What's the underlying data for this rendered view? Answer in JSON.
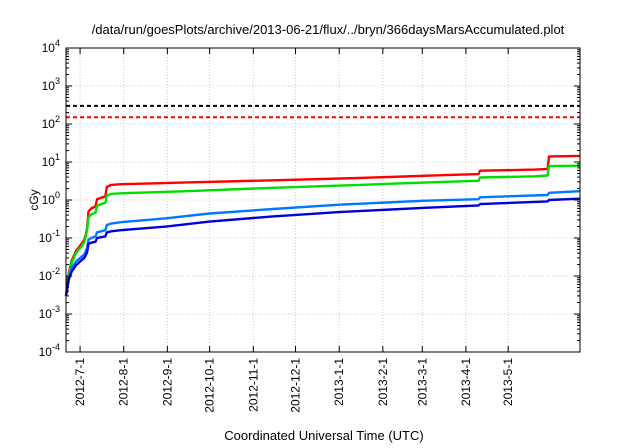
{
  "chart_data": {
    "type": "line",
    "title": "/data/run/goesPlots/archive/2013-06-21/flux/../bryn/366daysMarsAccumulated.plot",
    "xlabel": "Coordinated Universal Time (UTC)",
    "ylabel": "cGy",
    "yscale": "log",
    "ylim": [
      0.0001,
      10000
    ],
    "xlim": [
      "2012-06-21",
      "2013-06-21"
    ],
    "grid": true,
    "legend": "none",
    "y_ticks": [
      {
        "value": 0.0001,
        "base": "10",
        "exp": "-4"
      },
      {
        "value": 0.001,
        "base": "10",
        "exp": "-3"
      },
      {
        "value": 0.01,
        "base": "10",
        "exp": "-2"
      },
      {
        "value": 0.1,
        "base": "10",
        "exp": "-1"
      },
      {
        "value": 1,
        "base": "10",
        "exp": "0"
      },
      {
        "value": 10,
        "base": "10",
        "exp": "1"
      },
      {
        "value": 100,
        "base": "10",
        "exp": "2"
      },
      {
        "value": 1000,
        "base": "10",
        "exp": "3"
      },
      {
        "value": 10000,
        "base": "10",
        "exp": "4"
      }
    ],
    "x_ticks": [
      "2012-7-1",
      "2012-8-1",
      "2012-9-1",
      "2012-10-1",
      "2012-11-1",
      "2012-12-1",
      "2013-1-1",
      "2013-2-1",
      "2013-3-1",
      "2013-4-1",
      "2013-5-1"
    ],
    "reference_lines": [
      {
        "y": 300,
        "color": "#000000",
        "style": "dashed"
      },
      {
        "y": 150,
        "color": "#ff0000",
        "style": "dashed"
      }
    ],
    "series": [
      {
        "color": "#ff0000",
        "points": [
          [
            "2012-06-21",
            0.003
          ],
          [
            "2012-06-23",
            0.012
          ],
          [
            "2012-06-25",
            0.025
          ],
          [
            "2012-06-28",
            0.045
          ],
          [
            "2012-07-02",
            0.07
          ],
          [
            "2012-07-04",
            0.09
          ],
          [
            "2012-07-05",
            0.12
          ],
          [
            "2012-07-06",
            0.18
          ],
          [
            "2012-07-07",
            0.5
          ],
          [
            "2012-07-09",
            0.6
          ],
          [
            "2012-07-12",
            0.68
          ],
          [
            "2012-07-13",
            1.05
          ],
          [
            "2012-07-16",
            1.15
          ],
          [
            "2012-07-19",
            1.25
          ],
          [
            "2012-07-20",
            2.2
          ],
          [
            "2012-07-23",
            2.5
          ],
          [
            "2012-07-30",
            2.6
          ],
          [
            "2012-09-15",
            2.9
          ],
          [
            "2012-11-15",
            3.3
          ],
          [
            "2013-01-15",
            3.8
          ],
          [
            "2013-03-15",
            4.5
          ],
          [
            "2013-04-10",
            4.8
          ],
          [
            "2013-04-11",
            5.9
          ],
          [
            "2013-05-20",
            6.3
          ],
          [
            "2013-05-29",
            6.6
          ],
          [
            "2013-05-30",
            14
          ],
          [
            "2013-06-21",
            14.5
          ]
        ]
      },
      {
        "color": "#00dd00",
        "points": [
          [
            "2012-06-21",
            0.003
          ],
          [
            "2012-06-23",
            0.011
          ],
          [
            "2012-06-25",
            0.022
          ],
          [
            "2012-06-28",
            0.04
          ],
          [
            "2012-07-02",
            0.06
          ],
          [
            "2012-07-04",
            0.08
          ],
          [
            "2012-07-05",
            0.11
          ],
          [
            "2012-07-06",
            0.16
          ],
          [
            "2012-07-07",
            0.35
          ],
          [
            "2012-07-09",
            0.42
          ],
          [
            "2012-07-12",
            0.47
          ],
          [
            "2012-07-13",
            0.7
          ],
          [
            "2012-07-16",
            0.78
          ],
          [
            "2012-07-19",
            0.85
          ],
          [
            "2012-07-20",
            1.3
          ],
          [
            "2012-07-23",
            1.45
          ],
          [
            "2012-07-30",
            1.5
          ],
          [
            "2012-09-15",
            1.7
          ],
          [
            "2012-11-15",
            2.1
          ],
          [
            "2013-01-15",
            2.5
          ],
          [
            "2013-03-15",
            3.0
          ],
          [
            "2013-04-10",
            3.2
          ],
          [
            "2013-04-11",
            3.9
          ],
          [
            "2013-05-20",
            4.2
          ],
          [
            "2013-05-29",
            4.4
          ],
          [
            "2013-05-30",
            7.8
          ],
          [
            "2013-06-21",
            8.0
          ]
        ]
      },
      {
        "color": "#0077ff",
        "points": [
          [
            "2012-06-21",
            0.003
          ],
          [
            "2012-06-23",
            0.009
          ],
          [
            "2012-06-25",
            0.016
          ],
          [
            "2012-06-28",
            0.024
          ],
          [
            "2012-07-02",
            0.032
          ],
          [
            "2012-07-04",
            0.037
          ],
          [
            "2012-07-05",
            0.045
          ],
          [
            "2012-07-06",
            0.055
          ],
          [
            "2012-07-07",
            0.09
          ],
          [
            "2012-07-09",
            0.1
          ],
          [
            "2012-07-12",
            0.11
          ],
          [
            "2012-07-13",
            0.14
          ],
          [
            "2012-07-16",
            0.15
          ],
          [
            "2012-07-19",
            0.16
          ],
          [
            "2012-07-20",
            0.22
          ],
          [
            "2012-07-23",
            0.24
          ],
          [
            "2012-07-30",
            0.26
          ],
          [
            "2012-08-31",
            0.33
          ],
          [
            "2012-10-01",
            0.44
          ],
          [
            "2012-11-15",
            0.58
          ],
          [
            "2013-01-01",
            0.75
          ],
          [
            "2013-03-01",
            0.95
          ],
          [
            "2013-04-10",
            1.05
          ],
          [
            "2013-04-11",
            1.18
          ],
          [
            "2013-05-29",
            1.35
          ],
          [
            "2013-05-30",
            1.55
          ],
          [
            "2013-06-21",
            1.7
          ]
        ]
      },
      {
        "color": "#0000dd",
        "points": [
          [
            "2012-06-21",
            0.003
          ],
          [
            "2012-06-23",
            0.008
          ],
          [
            "2012-06-25",
            0.013
          ],
          [
            "2012-06-28",
            0.019
          ],
          [
            "2012-07-02",
            0.026
          ],
          [
            "2012-07-04",
            0.03
          ],
          [
            "2012-07-05",
            0.035
          ],
          [
            "2012-07-06",
            0.042
          ],
          [
            "2012-07-07",
            0.07
          ],
          [
            "2012-07-09",
            0.075
          ],
          [
            "2012-07-12",
            0.08
          ],
          [
            "2012-07-13",
            0.1
          ],
          [
            "2012-07-16",
            0.105
          ],
          [
            "2012-07-19",
            0.11
          ],
          [
            "2012-07-20",
            0.14
          ],
          [
            "2012-07-23",
            0.15
          ],
          [
            "2012-07-30",
            0.16
          ],
          [
            "2012-08-31",
            0.2
          ],
          [
            "2012-10-01",
            0.27
          ],
          [
            "2012-11-15",
            0.37
          ],
          [
            "2013-01-01",
            0.48
          ],
          [
            "2013-03-01",
            0.62
          ],
          [
            "2013-04-10",
            0.72
          ],
          [
            "2013-04-11",
            0.78
          ],
          [
            "2013-05-29",
            0.92
          ],
          [
            "2013-05-30",
            1.0
          ],
          [
            "2013-06-21",
            1.08
          ]
        ]
      }
    ]
  }
}
